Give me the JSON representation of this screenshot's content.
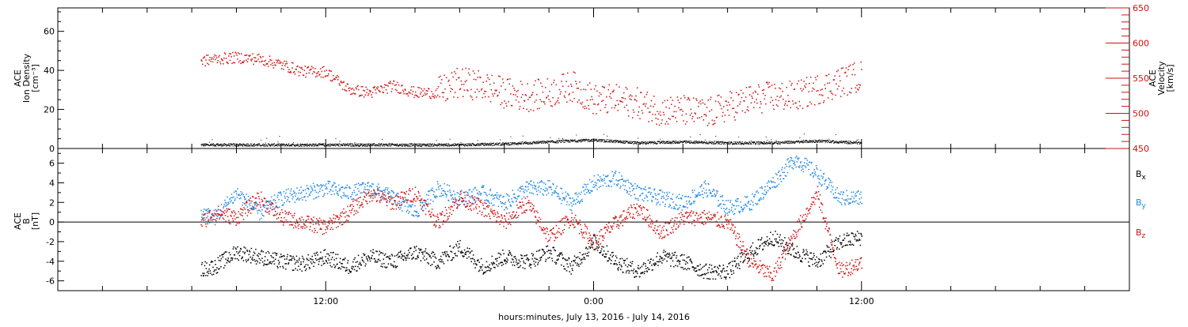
{
  "chart_data": [
    {
      "type": "scatter",
      "panel": "plasma",
      "ylabel_left": [
        "ACE",
        "Ion Density",
        "[cm⁻³]"
      ],
      "ylabel_right": [
        "ACE",
        "Velocity",
        "[km/s]"
      ],
      "left_axis": {
        "ylim": [
          0,
          72
        ],
        "ticks": [
          0,
          20,
          40,
          60
        ],
        "tick_labels": [
          "0",
          "20",
          "40",
          "60"
        ],
        "color": "#000000"
      },
      "right_axis": {
        "ylim": [
          450,
          650
        ],
        "ticks": [
          450,
          500,
          550,
          600,
          650
        ],
        "tick_labels": [
          "450",
          "500",
          "550",
          "600",
          "650"
        ],
        "color": "#d01010"
      },
      "x_hours": [
        0,
        48
      ],
      "data_end_hour": 36,
      "series": [
        {
          "axis": "left",
          "color": "#000000",
          "x": [
            6.4,
            8,
            10,
            12,
            14,
            16,
            18,
            20,
            22,
            24,
            26,
            28,
            30,
            32,
            34,
            36
          ],
          "y": [
            2.0,
            2.0,
            2.0,
            2.0,
            2.0,
            2.0,
            2.0,
            2.5,
            3.5,
            4.5,
            3.0,
            3.5,
            3.0,
            3.0,
            4.0,
            3.0
          ]
        },
        {
          "axis": "right",
          "color": "#d01010",
          "x": [
            6.4,
            7,
            8,
            9,
            10,
            11,
            12,
            13,
            14,
            15,
            16,
            17,
            18,
            19,
            20,
            21,
            22,
            23,
            24,
            25,
            26,
            27,
            28,
            29,
            30,
            31,
            32,
            33,
            34,
            35,
            36
          ],
          "y": [
            575,
            578,
            580,
            578,
            570,
            560,
            560,
            535,
            530,
            540,
            530,
            530,
            545,
            540,
            530,
            525,
            530,
            540,
            520,
            520,
            515,
            505,
            505,
            500,
            510,
            520,
            525,
            525,
            535,
            545,
            555
          ]
        }
      ]
    },
    {
      "type": "scatter",
      "panel": "magnetic",
      "ylabel_left": [
        "ACE",
        "B",
        "[nT]"
      ],
      "left_axis": {
        "ylim": [
          -7,
          7.5
        ],
        "ticks": [
          -6,
          -4,
          -2,
          0,
          2,
          4,
          6
        ],
        "tick_labels": [
          "-6",
          "-4",
          "-2",
          "0",
          "2",
          "4",
          "6"
        ]
      },
      "zero_line": true,
      "x_hours": [
        0,
        48
      ],
      "data_end_hour": 36,
      "legend": [
        {
          "label": "B",
          "sub": "x",
          "color": "#000000"
        },
        {
          "label": "B",
          "sub": "y",
          "color": "#1e88e5"
        },
        {
          "label": "B",
          "sub": "z",
          "color": "#d01010"
        }
      ],
      "series": [
        {
          "name": "Bx",
          "color": "#000000",
          "x": [
            6.4,
            7,
            8,
            9,
            10,
            11,
            12,
            13,
            14,
            15,
            16,
            17,
            18,
            19,
            20,
            21,
            22,
            23,
            24,
            25,
            26,
            27,
            28,
            29,
            30,
            31,
            32,
            33,
            34,
            35,
            36
          ],
          "y": [
            -4.8,
            -4.5,
            -3.0,
            -3.5,
            -4.0,
            -4.2,
            -3.5,
            -4.5,
            -3.5,
            -4.0,
            -3.0,
            -4.0,
            -2.5,
            -4.5,
            -3.5,
            -4.0,
            -3.0,
            -4.5,
            -2.0,
            -4.0,
            -5.0,
            -3.5,
            -4.0,
            -5.0,
            -5.0,
            -3.0,
            -1.5,
            -3.0,
            -4.0,
            -2.0,
            -1.5
          ]
        },
        {
          "name": "By",
          "color": "#1e88e5",
          "x": [
            6.4,
            7,
            8,
            9,
            10,
            11,
            12,
            13,
            14,
            15,
            16,
            17,
            18,
            19,
            20,
            21,
            22,
            23,
            24,
            25,
            26,
            27,
            28,
            29,
            30,
            31,
            32,
            33,
            34,
            35,
            36
          ],
          "y": [
            1.0,
            0.5,
            3.0,
            1.0,
            2.5,
            3.0,
            3.5,
            3.0,
            3.5,
            2.5,
            1.0,
            3.5,
            2.5,
            3.0,
            2.0,
            3.5,
            3.5,
            2.0,
            4.0,
            4.5,
            3.0,
            2.5,
            2.0,
            3.5,
            1.5,
            2.0,
            4.0,
            6.5,
            5.0,
            2.5,
            2.5
          ]
        },
        {
          "name": "Bz",
          "color": "#d01010",
          "x": [
            6.4,
            7,
            8,
            9,
            10,
            11,
            12,
            13,
            14,
            15,
            16,
            17,
            18,
            19,
            20,
            21,
            22,
            23,
            24,
            25,
            26,
            27,
            28,
            29,
            30,
            31,
            32,
            33,
            34,
            35,
            36
          ],
          "y": [
            0,
            1.0,
            0.5,
            2.5,
            0.5,
            0.0,
            -0.5,
            1.0,
            3.0,
            2.0,
            3.0,
            0.0,
            2.5,
            1.5,
            0.0,
            2.0,
            -1.5,
            0.5,
            -2.0,
            0.0,
            1.5,
            -1.0,
            0.5,
            0.5,
            0.0,
            -4.0,
            -5.5,
            -1.0,
            3.0,
            -5.0,
            -4.0
          ]
        }
      ]
    }
  ],
  "x_axis": {
    "range_hours": [
      0,
      48
    ],
    "labeled_ticks": [
      12,
      24,
      36
    ],
    "tick_labels": [
      "12:00",
      "0:00",
      "12:00"
    ],
    "minor_step_hours": 2,
    "title": "hours:minutes, July 13, 2016 - July 14, 2016"
  }
}
